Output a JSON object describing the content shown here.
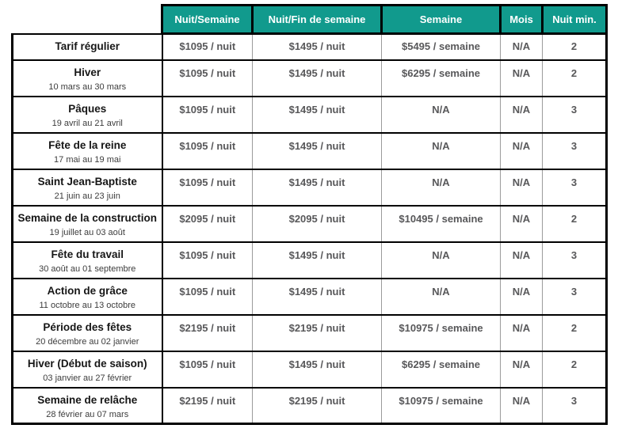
{
  "page": {
    "background": "#ffffff"
  },
  "colors": {
    "header_bg": "#119a8d",
    "header_text": "#ffffff",
    "border": "#000000",
    "grid_line": "#9b9b9b",
    "label_text": "#161616",
    "date_text": "#3c3c3c",
    "value_text": "#58585a"
  },
  "table": {
    "columns": [
      "Nuit/Semaine",
      "Nuit/Fin de semaine",
      "Semaine",
      "Mois",
      "Nuit min."
    ],
    "rows": [
      {
        "label": "Tarif régulier",
        "dates": "",
        "values": [
          "$1095 / nuit",
          "$1495 / nuit",
          "$5495 / semaine",
          "N/A",
          "2"
        ]
      },
      {
        "label": "Hiver",
        "dates": "10 mars au 30 mars",
        "values": [
          "$1095 / nuit",
          "$1495 / nuit",
          "$6295 / semaine",
          "N/A",
          "2"
        ]
      },
      {
        "label": "Pâques",
        "dates": "19 avril au 21 avril",
        "values": [
          "$1095 / nuit",
          "$1495 / nuit",
          "N/A",
          "N/A",
          "3"
        ]
      },
      {
        "label": "Fête de la reine",
        "dates": "17 mai au 19 mai",
        "values": [
          "$1095 / nuit",
          "$1495 / nuit",
          "N/A",
          "N/A",
          "3"
        ]
      },
      {
        "label": "Saint Jean-Baptiste",
        "dates": "21 juin au 23 juin",
        "values": [
          "$1095 / nuit",
          "$1495 / nuit",
          "N/A",
          "N/A",
          "3"
        ]
      },
      {
        "label": "Semaine de la construction",
        "dates": "19 juillet au 03 août",
        "values": [
          "$2095 / nuit",
          "$2095 / nuit",
          "$10495 / semaine",
          "N/A",
          "2"
        ]
      },
      {
        "label": "Fête du travail",
        "dates": "30 août au 01 septembre",
        "values": [
          "$1095 / nuit",
          "$1495 / nuit",
          "N/A",
          "N/A",
          "3"
        ]
      },
      {
        "label": "Action de grâce",
        "dates": "11 octobre au 13 octobre",
        "values": [
          "$1095 / nuit",
          "$1495 / nuit",
          "N/A",
          "N/A",
          "3"
        ]
      },
      {
        "label": "Période des fêtes",
        "dates": "20 décembre au 02 janvier",
        "values": [
          "$2195 / nuit",
          "$2195 / nuit",
          "$10975 / semaine",
          "N/A",
          "2"
        ]
      },
      {
        "label": "Hiver (Début de saison)",
        "dates": "03 janvier au 27 février",
        "values": [
          "$1095 / nuit",
          "$1495 / nuit",
          "$6295 / semaine",
          "N/A",
          "2"
        ]
      },
      {
        "label": "Semaine de relâche",
        "dates": "28 février au 07 mars",
        "values": [
          "$2195 / nuit",
          "$2195 / nuit",
          "$10975 / semaine",
          "N/A",
          "3"
        ]
      }
    ]
  }
}
